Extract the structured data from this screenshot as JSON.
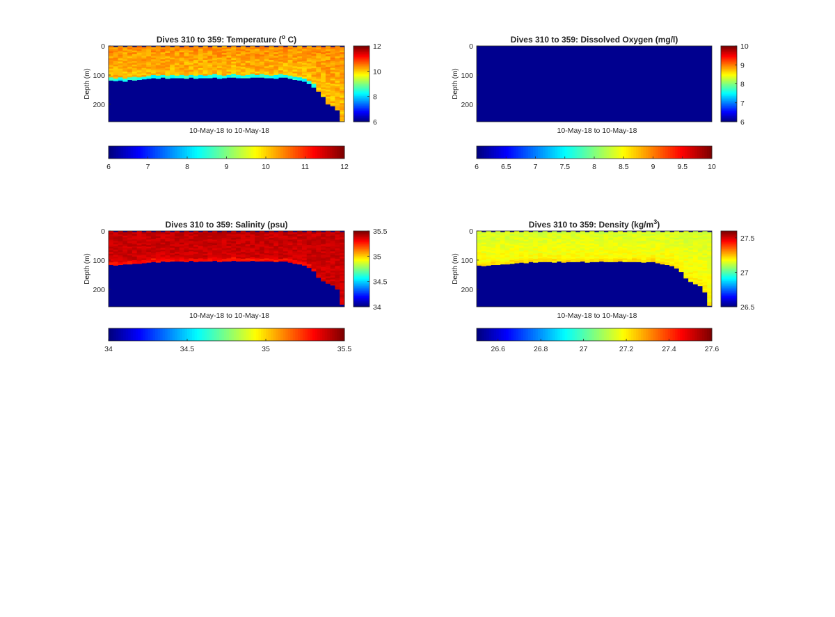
{
  "figure": {
    "background": "#ffffff",
    "colormap": "jet",
    "no_data_color": "#00008f"
  },
  "chart_data": [
    {
      "type": "heatmap",
      "title": "Dives 310 to 359: Temperature (° C)",
      "title_parts": {
        "before": "Dives 310 to 359: Temperature (",
        "sup": "o",
        "after": " C)"
      },
      "xlabel": "10-May-18 to 10-May-18",
      "ylabel": "Depth (m)",
      "y_ticks": [
        "0",
        "100",
        "200"
      ],
      "y_tick_values": [
        0,
        100,
        200
      ],
      "ylim": [
        0,
        260
      ],
      "y_reversed": true,
      "dives": [
        310,
        359
      ],
      "columns": 50,
      "color_range": [
        6,
        12
      ],
      "side_colorbar_ticks": [
        "6",
        "8",
        "10",
        "12"
      ],
      "side_colorbar_values": [
        6,
        8,
        10,
        12
      ],
      "bottom_colorbar_ticks": [
        "6",
        "7",
        "8",
        "9",
        "10",
        "11",
        "12"
      ],
      "bottom_colorbar_values": [
        6,
        7,
        8,
        9,
        10,
        11,
        12
      ],
      "profile": {
        "surface_value": 10.4,
        "deep_value": 10.1,
        "bottom_band_value": 8.4,
        "noise": 0.25
      },
      "bottom_depth_m": [
        118,
        120,
        118,
        122,
        116,
        118,
        116,
        114,
        112,
        110,
        112,
        108,
        112,
        110,
        110,
        110,
        112,
        108,
        112,
        110,
        110,
        110,
        108,
        112,
        110,
        108,
        108,
        110,
        110,
        110,
        108,
        108,
        108,
        110,
        110,
        112,
        108,
        108,
        112,
        116,
        118,
        122,
        130,
        142,
        156,
        174,
        200,
        206,
        220,
        258
      ]
    },
    {
      "type": "heatmap",
      "title": "Dives 310 to 359: Dissolved Oxygen (mg/l)",
      "xlabel": "10-May-18 to 10-May-18",
      "ylabel": "Depth (m)",
      "y_ticks": [
        "0",
        "100",
        "200"
      ],
      "y_tick_values": [
        0,
        100,
        200
      ],
      "ylim": [
        0,
        260
      ],
      "y_reversed": true,
      "dives": [
        310,
        359
      ],
      "columns": 50,
      "color_range": [
        6,
        10
      ],
      "side_colorbar_ticks": [
        "6",
        "7",
        "8",
        "9",
        "10"
      ],
      "side_colorbar_values": [
        6,
        7,
        8,
        9,
        10
      ],
      "bottom_colorbar_ticks": [
        "6",
        "6.5",
        "7",
        "7.5",
        "8",
        "8.5",
        "9",
        "9.5",
        "10"
      ],
      "bottom_colorbar_values": [
        6,
        6.5,
        7,
        7.5,
        8,
        8.5,
        9,
        9.5,
        10
      ],
      "profile": null,
      "bottom_depth_m": [
        0
      ]
    },
    {
      "type": "heatmap",
      "title": "Dives 310 to 359: Salinity (psu)",
      "xlabel": "10-May-18 to 10-May-18",
      "ylabel": "Depth (m)",
      "y_ticks": [
        "0",
        "100",
        "200"
      ],
      "y_tick_values": [
        0,
        100,
        200
      ],
      "ylim": [
        0,
        260
      ],
      "y_reversed": true,
      "dives": [
        310,
        359
      ],
      "columns": 50,
      "color_range": [
        34,
        35.5
      ],
      "side_colorbar_ticks": [
        "34",
        "34.5",
        "35",
        "35.5"
      ],
      "side_colorbar_values": [
        34,
        34.5,
        35,
        35.5
      ],
      "bottom_colorbar_ticks": [
        "34",
        "34.5",
        "35",
        "35.5"
      ],
      "bottom_colorbar_values": [
        34,
        34.5,
        35,
        35.5
      ],
      "profile": {
        "surface_value": 35.4,
        "deep_value": 35.38,
        "bottom_band_value": 35.3,
        "noise": 0.04
      },
      "bottom_depth_m": [
        116,
        118,
        116,
        114,
        114,
        112,
        112,
        110,
        108,
        106,
        108,
        104,
        106,
        104,
        104,
        104,
        106,
        102,
        106,
        104,
        104,
        104,
        102,
        106,
        104,
        104,
        102,
        104,
        104,
        104,
        102,
        104,
        104,
        104,
        104,
        106,
        104,
        104,
        108,
        112,
        114,
        118,
        126,
        138,
        160,
        172,
        180,
        186,
        200,
        252
      ]
    },
    {
      "type": "heatmap",
      "title": "Dives 310 to 359: Density (kg/m³)",
      "title_parts": {
        "before": "Dives 310 to 359: Density (kg/m",
        "sup": "3",
        "after": ")"
      },
      "xlabel": "10-May-18 to 10-May-18",
      "ylabel": "Depth (m)",
      "y_ticks": [
        "0",
        "100",
        "200"
      ],
      "y_tick_values": [
        0,
        100,
        200
      ],
      "ylim": [
        0,
        260
      ],
      "y_reversed": true,
      "dives": [
        310,
        359
      ],
      "columns": 50,
      "color_range": [
        26.5,
        27.6
      ],
      "side_colorbar_ticks": [
        "26.5",
        "27",
        "27.5"
      ],
      "side_colorbar_values": [
        26.5,
        27,
        27.5
      ],
      "bottom_colorbar_ticks": [
        "26.6",
        "26.8",
        "27",
        "27.2",
        "27.4",
        "27.6"
      ],
      "bottom_colorbar_values": [
        26.6,
        26.8,
        27,
        27.2,
        27.4,
        27.6
      ],
      "profile": {
        "surface_value": 27.14,
        "deep_value": 27.2,
        "bottom_band_value": 27.22,
        "noise": 0.025
      },
      "bottom_depth_m": [
        118,
        120,
        118,
        116,
        116,
        114,
        114,
        112,
        110,
        108,
        110,
        106,
        108,
        106,
        106,
        106,
        108,
        104,
        108,
        106,
        106,
        106,
        104,
        108,
        106,
        106,
        104,
        106,
        106,
        106,
        104,
        106,
        106,
        106,
        106,
        108,
        106,
        106,
        110,
        114,
        116,
        120,
        128,
        140,
        162,
        174,
        182,
        188,
        210,
        256
      ]
    }
  ]
}
